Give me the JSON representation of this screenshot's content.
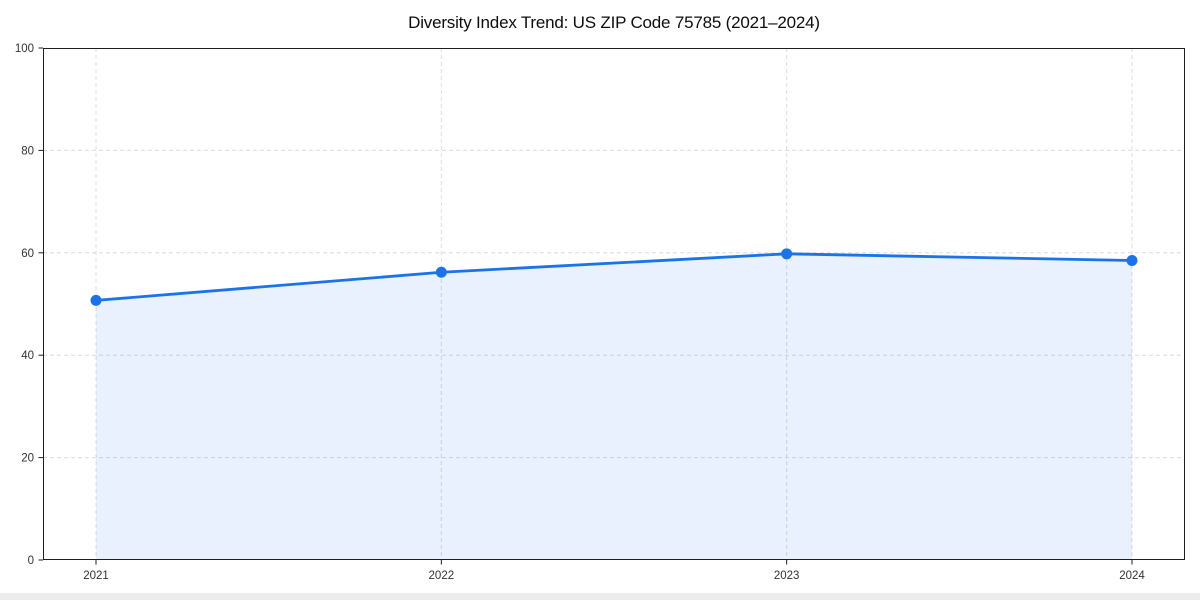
{
  "page": {
    "background": "#ffffff",
    "footer_strip_color": "#ececec"
  },
  "chart_data": {
    "type": "line",
    "title": "Diversity Index Trend: US ZIP Code 75785 (2021–2024)",
    "x": [
      "2021",
      "2022",
      "2023",
      "2024"
    ],
    "series": [
      {
        "name": "Diversity Index",
        "values": [
          50.7,
          56.2,
          59.8,
          58.5
        ]
      }
    ],
    "xlabel": "",
    "ylabel": "",
    "ylim": [
      0,
      100
    ],
    "yticks": [
      0,
      20,
      40,
      60,
      80,
      100
    ],
    "grid": "dashed, horizontal and vertical",
    "legend": "none",
    "line_color": "#1a73e8",
    "fill_color": "#1a73e8",
    "fill_opacity": 0.1,
    "marker": "circle",
    "marker_radius": 5.5,
    "line_width": 2.8
  }
}
